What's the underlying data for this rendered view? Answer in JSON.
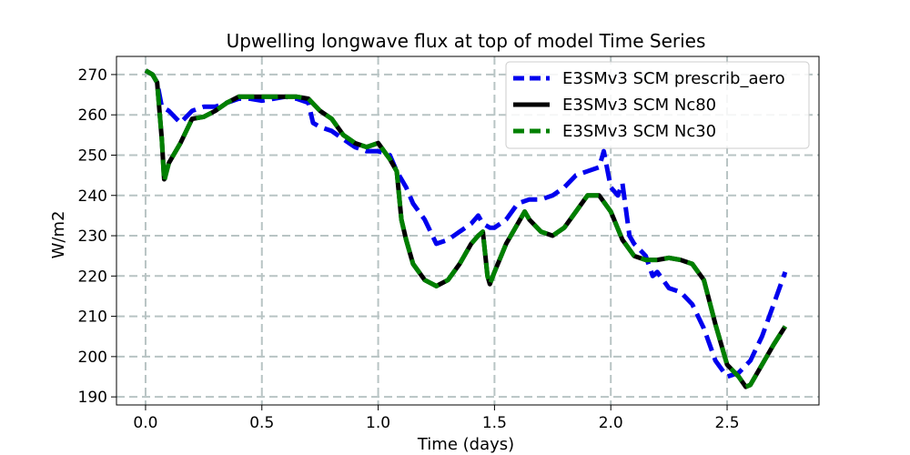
{
  "chart_data": {
    "type": "line",
    "title": "Upwelling longwave flux at top of model Time Series",
    "xlabel": "Time (days)",
    "ylabel": "W/m2",
    "xlim": [
      -0.125,
      2.895
    ],
    "ylim": [
      188,
      274.5
    ],
    "xticks": [
      0.0,
      0.5,
      1.0,
      1.5,
      2.0,
      2.5
    ],
    "xtick_labels": [
      "0.0",
      "0.5",
      "1.0",
      "1.5",
      "2.0",
      "2.5"
    ],
    "yticks": [
      190,
      200,
      210,
      220,
      230,
      240,
      250,
      260,
      270
    ],
    "ytick_labels": [
      "190",
      "200",
      "210",
      "220",
      "230",
      "240",
      "250",
      "260",
      "270"
    ],
    "grid": true,
    "legend_position": "top-right",
    "series": [
      {
        "name": "E3SMv3 SCM prescrib_aero",
        "color": "#0000ee",
        "style": "dashed",
        "x": [
          0.0,
          0.03,
          0.05,
          0.07,
          0.1,
          0.15,
          0.2,
          0.25,
          0.3,
          0.35,
          0.4,
          0.45,
          0.5,
          0.55,
          0.6,
          0.65,
          0.7,
          0.72,
          0.75,
          0.8,
          0.85,
          0.9,
          0.95,
          1.0,
          1.05,
          1.08,
          1.12,
          1.15,
          1.2,
          1.25,
          1.3,
          1.35,
          1.4,
          1.43,
          1.45,
          1.48,
          1.5,
          1.55,
          1.6,
          1.65,
          1.7,
          1.75,
          1.8,
          1.85,
          1.9,
          1.95,
          1.97,
          2.0,
          2.03,
          2.05,
          2.08,
          2.1,
          2.15,
          2.18,
          2.2,
          2.25,
          2.3,
          2.35,
          2.4,
          2.45,
          2.5,
          2.55,
          2.6,
          2.65,
          2.7,
          2.75
        ],
        "y": [
          271,
          270,
          268,
          262,
          261,
          258,
          261,
          262,
          262,
          263,
          264,
          264,
          263.5,
          264,
          264.5,
          264,
          263,
          258,
          257,
          256,
          254,
          252,
          251,
          251,
          250,
          246,
          242,
          238,
          234,
          228,
          229,
          231,
          233,
          235,
          233,
          232,
          232,
          234,
          238,
          239,
          239,
          240,
          242,
          245,
          246,
          247,
          251,
          242,
          240,
          243,
          230,
          228,
          225,
          220,
          221,
          217,
          216,
          213,
          207,
          199,
          195,
          196,
          199,
          205,
          213,
          221
        ]
      },
      {
        "name": "E3SMv3 SCM Nc80",
        "color": "#000000",
        "style": "solid",
        "x": [
          0.0,
          0.03,
          0.05,
          0.07,
          0.08,
          0.1,
          0.15,
          0.2,
          0.25,
          0.3,
          0.35,
          0.4,
          0.45,
          0.5,
          0.55,
          0.6,
          0.65,
          0.7,
          0.75,
          0.8,
          0.85,
          0.9,
          0.95,
          1.0,
          1.05,
          1.08,
          1.1,
          1.12,
          1.15,
          1.2,
          1.25,
          1.3,
          1.35,
          1.4,
          1.43,
          1.45,
          1.47,
          1.48,
          1.5,
          1.55,
          1.6,
          1.63,
          1.65,
          1.7,
          1.75,
          1.8,
          1.85,
          1.9,
          1.95,
          2.0,
          2.05,
          2.1,
          2.15,
          2.2,
          2.25,
          2.3,
          2.35,
          2.4,
          2.45,
          2.5,
          2.55,
          2.58,
          2.6,
          2.65,
          2.7,
          2.75
        ],
        "y": [
          271,
          270,
          268,
          254,
          244,
          248,
          253,
          259,
          259.5,
          261,
          263,
          264.5,
          264.5,
          264.5,
          264.5,
          264.5,
          264.5,
          264,
          261,
          259,
          255,
          253,
          252,
          253,
          249,
          246,
          234,
          229,
          223,
          219,
          217.5,
          219,
          223,
          228,
          230,
          231,
          220,
          218,
          221,
          228,
          233,
          236,
          234,
          231,
          230,
          232,
          236,
          240,
          240,
          236,
          229,
          225,
          224,
          224,
          224.5,
          224,
          223,
          219,
          208,
          198,
          195,
          192.5,
          193,
          198,
          203,
          207.5
        ]
      },
      {
        "name": "E3SMv3 SCM Nc30",
        "color": "#008000",
        "style": "dashed",
        "x": [
          0.0,
          0.03,
          0.05,
          0.07,
          0.08,
          0.1,
          0.15,
          0.2,
          0.25,
          0.3,
          0.35,
          0.4,
          0.45,
          0.5,
          0.55,
          0.6,
          0.65,
          0.7,
          0.75,
          0.8,
          0.85,
          0.9,
          0.95,
          1.0,
          1.05,
          1.08,
          1.1,
          1.12,
          1.15,
          1.2,
          1.25,
          1.3,
          1.35,
          1.4,
          1.43,
          1.45,
          1.47,
          1.48,
          1.5,
          1.55,
          1.6,
          1.63,
          1.65,
          1.7,
          1.75,
          1.8,
          1.85,
          1.9,
          1.95,
          2.0,
          2.05,
          2.1,
          2.15,
          2.2,
          2.25,
          2.3,
          2.35,
          2.4,
          2.45,
          2.5,
          2.55,
          2.58,
          2.6,
          2.65,
          2.7,
          2.75
        ],
        "y": [
          271,
          270,
          268,
          254,
          243.5,
          248,
          253,
          259,
          259.5,
          261,
          263,
          264.5,
          264.5,
          264.5,
          264.5,
          264.5,
          264.5,
          264,
          261,
          259,
          255,
          253,
          252,
          253,
          249,
          246,
          234,
          229,
          223,
          219,
          217.5,
          219,
          223,
          228,
          230,
          231,
          220,
          218,
          221,
          228,
          233,
          236,
          234,
          231,
          230,
          232,
          236,
          240,
          240,
          236,
          229,
          225,
          224,
          224,
          224.5,
          224,
          223,
          219,
          208,
          198,
          195,
          192.5,
          193,
          198,
          203,
          207.5
        ]
      }
    ]
  }
}
